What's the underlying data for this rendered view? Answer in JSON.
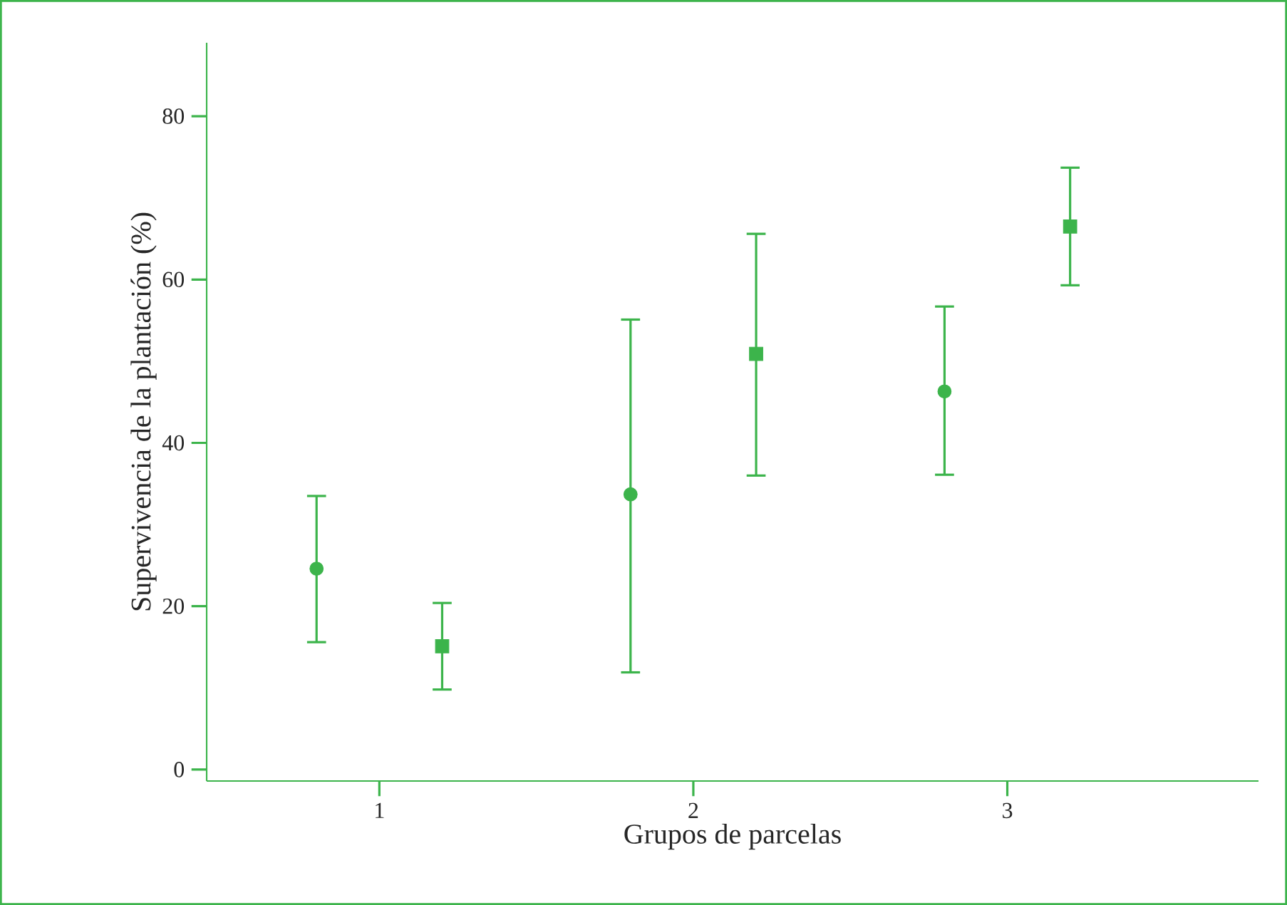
{
  "chart_data": {
    "type": "scatter",
    "xlabel": "Grupos de parcelas",
    "ylabel": "Supervivencia de la plantación (%)",
    "xlim": [
      0.45,
      3.8
    ],
    "xticks": [
      1,
      2,
      3
    ],
    "ylim": [
      -1.4,
      89
    ],
    "yticks": [
      0,
      20,
      40,
      60,
      80
    ],
    "grid": false,
    "series": [
      {
        "color": "#3cb44b",
        "marker": "circle",
        "x": [
          0.8,
          1.8,
          2.8
        ],
        "values": [
          24.6,
          33.7,
          46.3
        ],
        "errors": [
          [
            15.6,
            33.5
          ],
          [
            11.9,
            55.1
          ],
          [
            36.1,
            56.7
          ]
        ]
      },
      {
        "color": "#3cb44b",
        "marker": "square",
        "x": [
          1.2,
          2.2,
          3.2
        ],
        "values": [
          15.1,
          50.9,
          66.5
        ],
        "errors": [
          [
            9.8,
            20.4
          ],
          [
            36.0,
            65.6
          ],
          [
            59.3,
            73.7
          ]
        ]
      }
    ]
  }
}
